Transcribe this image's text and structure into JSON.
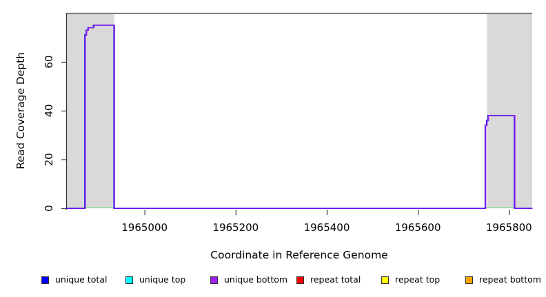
{
  "figure": {
    "xlabel": "Coordinate in Reference Genome",
    "ylabel": "Read Coverage Depth"
  },
  "chart_data": {
    "type": "line",
    "subtype": "step-coverage",
    "title": "",
    "xlabel": "Coordinate in Reference Genome",
    "ylabel": "Read Coverage Depth",
    "xlim": [
      1964828,
      1965851
    ],
    "ylim": [
      0,
      80
    ],
    "x_ticks": [
      1965000,
      1965200,
      1965400,
      1965600,
      1965800
    ],
    "y_ticks": [
      0,
      20,
      40,
      60
    ],
    "grid": false,
    "legend_position": "bottom",
    "shaded_regions": [
      {
        "start": 1964828,
        "end": 1964933,
        "color": "#D9D9D9"
      },
      {
        "start": 1965752,
        "end": 1965851,
        "color": "#D9D9D9"
      }
    ],
    "coverage_profile": [
      [
        1964828,
        0
      ],
      [
        1964869,
        0
      ],
      [
        1964869,
        71
      ],
      [
        1964872,
        71
      ],
      [
        1964872,
        73
      ],
      [
        1964876,
        73
      ],
      [
        1964876,
        74
      ],
      [
        1964888,
        74
      ],
      [
        1964888,
        75
      ],
      [
        1964933,
        75
      ],
      [
        1964933,
        0
      ],
      [
        1965748,
        0
      ],
      [
        1965748,
        34
      ],
      [
        1965751,
        34
      ],
      [
        1965751,
        36
      ],
      [
        1965754,
        36
      ],
      [
        1965754,
        38
      ],
      [
        1965812,
        38
      ],
      [
        1965812,
        0
      ],
      [
        1965851,
        0
      ]
    ],
    "zero_line_segments": [
      {
        "start": 1964869,
        "end": 1964933,
        "color": "#8FE08F"
      },
      {
        "start": 1965748,
        "end": 1965812,
        "color": "#8FE08F"
      }
    ],
    "line_colors": {
      "unique_total": "#2020E8",
      "unique_bottom": "#A020F0"
    },
    "axis_color": "#333333",
    "box_top_color": "#6E6E6E",
    "legend": [
      {
        "label": "unique total",
        "color": "#0000FF"
      },
      {
        "label": "unique top",
        "color": "#00FFFF"
      },
      {
        "label": "unique bottom",
        "color": "#A020F0"
      },
      {
        "label": "repeat total",
        "color": "#FF0000"
      },
      {
        "label": "repeat top",
        "color": "#FFFF00"
      },
      {
        "label": "repeat bottom",
        "color": "#FFA500"
      }
    ]
  }
}
